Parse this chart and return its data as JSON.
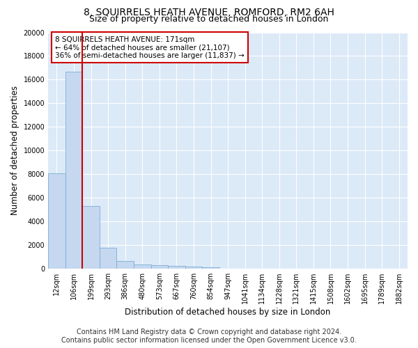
{
  "title": "8, SQUIRRELS HEATH AVENUE, ROMFORD, RM2 6AH",
  "subtitle": "Size of property relative to detached houses in London",
  "xlabel": "Distribution of detached houses by size in London",
  "ylabel": "Number of detached properties",
  "bar_color": "#c5d8f0",
  "bar_edge_color": "#7aaed4",
  "annotation_text": "8 SQUIRRELS HEATH AVENUE: 171sqm\n← 64% of detached houses are smaller (21,107)\n36% of semi-detached houses are larger (11,837) →",
  "annotation_box_color": "white",
  "annotation_box_edge_color": "#cc0000",
  "red_line_x": 1.62,
  "categories": [
    "12sqm",
    "106sqm",
    "199sqm",
    "293sqm",
    "386sqm",
    "480sqm",
    "573sqm",
    "667sqm",
    "760sqm",
    "854sqm",
    "947sqm",
    "1041sqm",
    "1134sqm",
    "1228sqm",
    "1321sqm",
    "1415sqm",
    "1508sqm",
    "1602sqm",
    "1695sqm",
    "1789sqm",
    "1882sqm"
  ],
  "values": [
    8100,
    16700,
    5300,
    1750,
    650,
    380,
    290,
    220,
    170,
    140,
    0,
    0,
    0,
    0,
    0,
    0,
    0,
    0,
    0,
    0,
    0
  ],
  "ylim": [
    0,
    20000
  ],
  "yticks": [
    0,
    2000,
    4000,
    6000,
    8000,
    10000,
    12000,
    14000,
    16000,
    18000,
    20000
  ],
  "plot_bg_color": "#dce9f7",
  "grid_color": "#ffffff",
  "footer_line1": "Contains HM Land Registry data © Crown copyright and database right 2024.",
  "footer_line2": "Contains public sector information licensed under the Open Government Licence v3.0.",
  "title_fontsize": 10,
  "subtitle_fontsize": 9,
  "axis_label_fontsize": 8.5,
  "tick_fontsize": 7,
  "annotation_fontsize": 7.5,
  "footer_fontsize": 7
}
